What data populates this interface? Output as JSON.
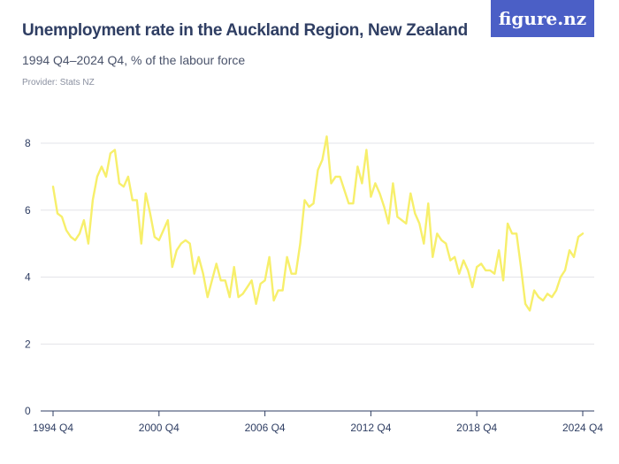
{
  "header": {
    "title": "Unemployment rate in the Auckland Region, New Zealand",
    "subtitle": "1994 Q4–2024 Q4, % of the labour force",
    "provider": "Provider: Stats NZ",
    "logo_text": "figure.nz"
  },
  "colors": {
    "series": "#f7ef6b",
    "logo_bg": "#4b5fc6",
    "title": "#2f3e63"
  },
  "chart_data": {
    "type": "line",
    "title": "Unemployment rate in the Auckland Region, New Zealand",
    "subtitle": "1994 Q4–2024 Q4, % of the labour force",
    "xlabel": "",
    "ylabel": "",
    "ylim": [
      0,
      8
    ],
    "yticks": [
      0,
      2,
      4,
      6,
      8
    ],
    "xticks": [
      "1994 Q4",
      "2000 Q4",
      "2006 Q4",
      "2012 Q4",
      "2018 Q4",
      "2024 Q4"
    ],
    "grid": true,
    "legend": "none",
    "series": [
      {
        "values": [
          6.7,
          5.9,
          5.8,
          5.4,
          5.2,
          5.1,
          5.3,
          5.7,
          5.0,
          6.3,
          7.0,
          7.3,
          7.0,
          7.7,
          7.8,
          6.8,
          6.7,
          7.0,
          6.3,
          6.3,
          5.0,
          6.5,
          5.9,
          5.2,
          5.1,
          5.4,
          5.7,
          4.3,
          4.8,
          5.0,
          5.1,
          5.0,
          4.1,
          4.6,
          4.1,
          3.4,
          3.9,
          4.4,
          3.9,
          3.9,
          3.4,
          4.3,
          3.4,
          3.5,
          3.7,
          3.9,
          3.2,
          3.8,
          3.9,
          4.6,
          3.3,
          3.6,
          3.6,
          4.6,
          4.1,
          4.1,
          5.0,
          6.3,
          6.1,
          6.2,
          7.2,
          7.5,
          8.2,
          6.8,
          7.0,
          7.0,
          6.6,
          6.2,
          6.2,
          7.3,
          6.8,
          7.8,
          6.4,
          6.8,
          6.5,
          6.1,
          5.6,
          6.8,
          5.8,
          5.7,
          5.6,
          6.5,
          5.9,
          5.6,
          5.0,
          6.2,
          4.6,
          5.3,
          5.1,
          5.0,
          4.5,
          4.6,
          4.1,
          4.5,
          4.2,
          3.7,
          4.3,
          4.4,
          4.2,
          4.2,
          4.1,
          4.8,
          3.9,
          5.6,
          5.3,
          5.3,
          4.3,
          3.2,
          3.0,
          3.6,
          3.4,
          3.3,
          3.5,
          3.4,
          3.6,
          4.0,
          4.2,
          4.8,
          4.6,
          5.2,
          5.3
        ]
      }
    ]
  }
}
